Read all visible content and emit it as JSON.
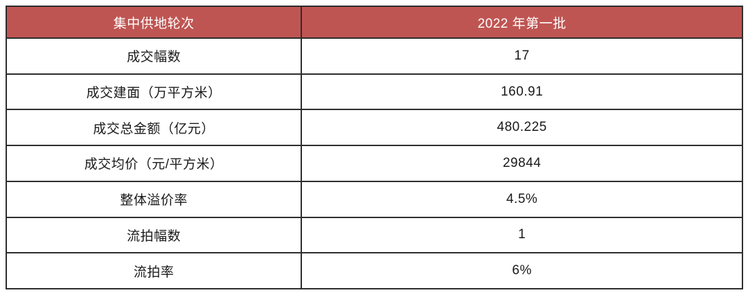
{
  "table": {
    "header": {
      "round_col": "集中供地轮次",
      "batch_col": "2022 年第一批"
    },
    "rows": [
      {
        "label": "成交幅数",
        "value": "17"
      },
      {
        "label": "成交建面（万平方米）",
        "value": "160.91"
      },
      {
        "label": "成交总金额（亿元）",
        "value": "480.225"
      },
      {
        "label": "成交均价（元/平方米）",
        "value": "29844"
      },
      {
        "label": "整体溢价率",
        "value": "4.5%"
      },
      {
        "label": "流拍幅数",
        "value": "1"
      },
      {
        "label": "流拍率",
        "value": "6%"
      }
    ]
  },
  "colors": {
    "header_bg": "#BF5552",
    "header_text": "#FFFFFF",
    "body_text": "#1A1A1A",
    "border": "#2E2E2E",
    "page_bg": "#FFFFFF"
  }
}
